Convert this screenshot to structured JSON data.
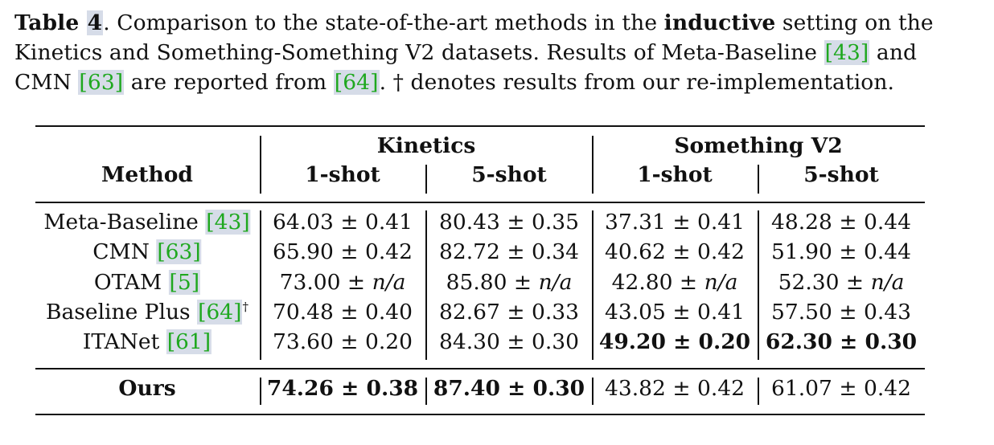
{
  "caption": {
    "table_label": "Table",
    "table_number": "4",
    "text_a": ". Comparison to the state-of-the-art methods in the ",
    "bold_word": "inductive",
    "text_b": " setting on the Kinetics and Something-Something V2 datasets. Results of Meta-Baseline ",
    "ref_meta": "[43]",
    "text_c": " and CMN ",
    "ref_cmn": "[63]",
    "text_d": " are reported from ",
    "ref_src": "[64]",
    "text_e": ". † denotes results from our re-implementation."
  },
  "table": {
    "method_header": "Method",
    "groups": [
      "Kinetics",
      "Something V2"
    ],
    "shots": [
      "1-shot",
      "5-shot",
      "1-shot",
      "5-shot"
    ],
    "rows": [
      {
        "name": "Meta-Baseline ",
        "ref": "[43]",
        "mark": "",
        "cells": [
          [
            "64.03",
            "0.41"
          ],
          [
            "80.43",
            "0.35"
          ],
          [
            "37.31",
            "0.41"
          ],
          [
            "48.28",
            "0.44"
          ]
        ]
      },
      {
        "name": "CMN ",
        "ref": "[63]",
        "mark": "",
        "cells": [
          [
            "65.90",
            "0.42"
          ],
          [
            "82.72",
            "0.34"
          ],
          [
            "40.62",
            "0.42"
          ],
          [
            "51.90",
            "0.44"
          ]
        ]
      },
      {
        "name": "OTAM ",
        "ref": "[5]",
        "mark": "",
        "cells": [
          [
            "73.00",
            "n/a"
          ],
          [
            "85.80",
            "n/a"
          ],
          [
            "42.80",
            "n/a"
          ],
          [
            "52.30",
            "n/a"
          ]
        ]
      },
      {
        "name": "Baseline Plus ",
        "ref": "[64]",
        "mark": "†",
        "cells": [
          [
            "70.48",
            "0.40"
          ],
          [
            "82.67",
            "0.33"
          ],
          [
            "43.05",
            "0.41"
          ],
          [
            "57.50",
            "0.43"
          ]
        ]
      },
      {
        "name": "ITANet ",
        "ref": "[61]",
        "mark": "",
        "cells": [
          [
            "73.60",
            "0.20"
          ],
          [
            "84.30",
            "0.30"
          ],
          [
            "49.20",
            "0.20"
          ],
          [
            "62.30",
            "0.30"
          ]
        ]
      }
    ],
    "ours": {
      "name": "Ours",
      "cells": [
        [
          "74.26",
          "0.38"
        ],
        [
          "87.40",
          "0.30"
        ],
        [
          "43.82",
          "0.42"
        ],
        [
          "61.07",
          "0.42"
        ]
      ]
    },
    "pm": "±"
  }
}
